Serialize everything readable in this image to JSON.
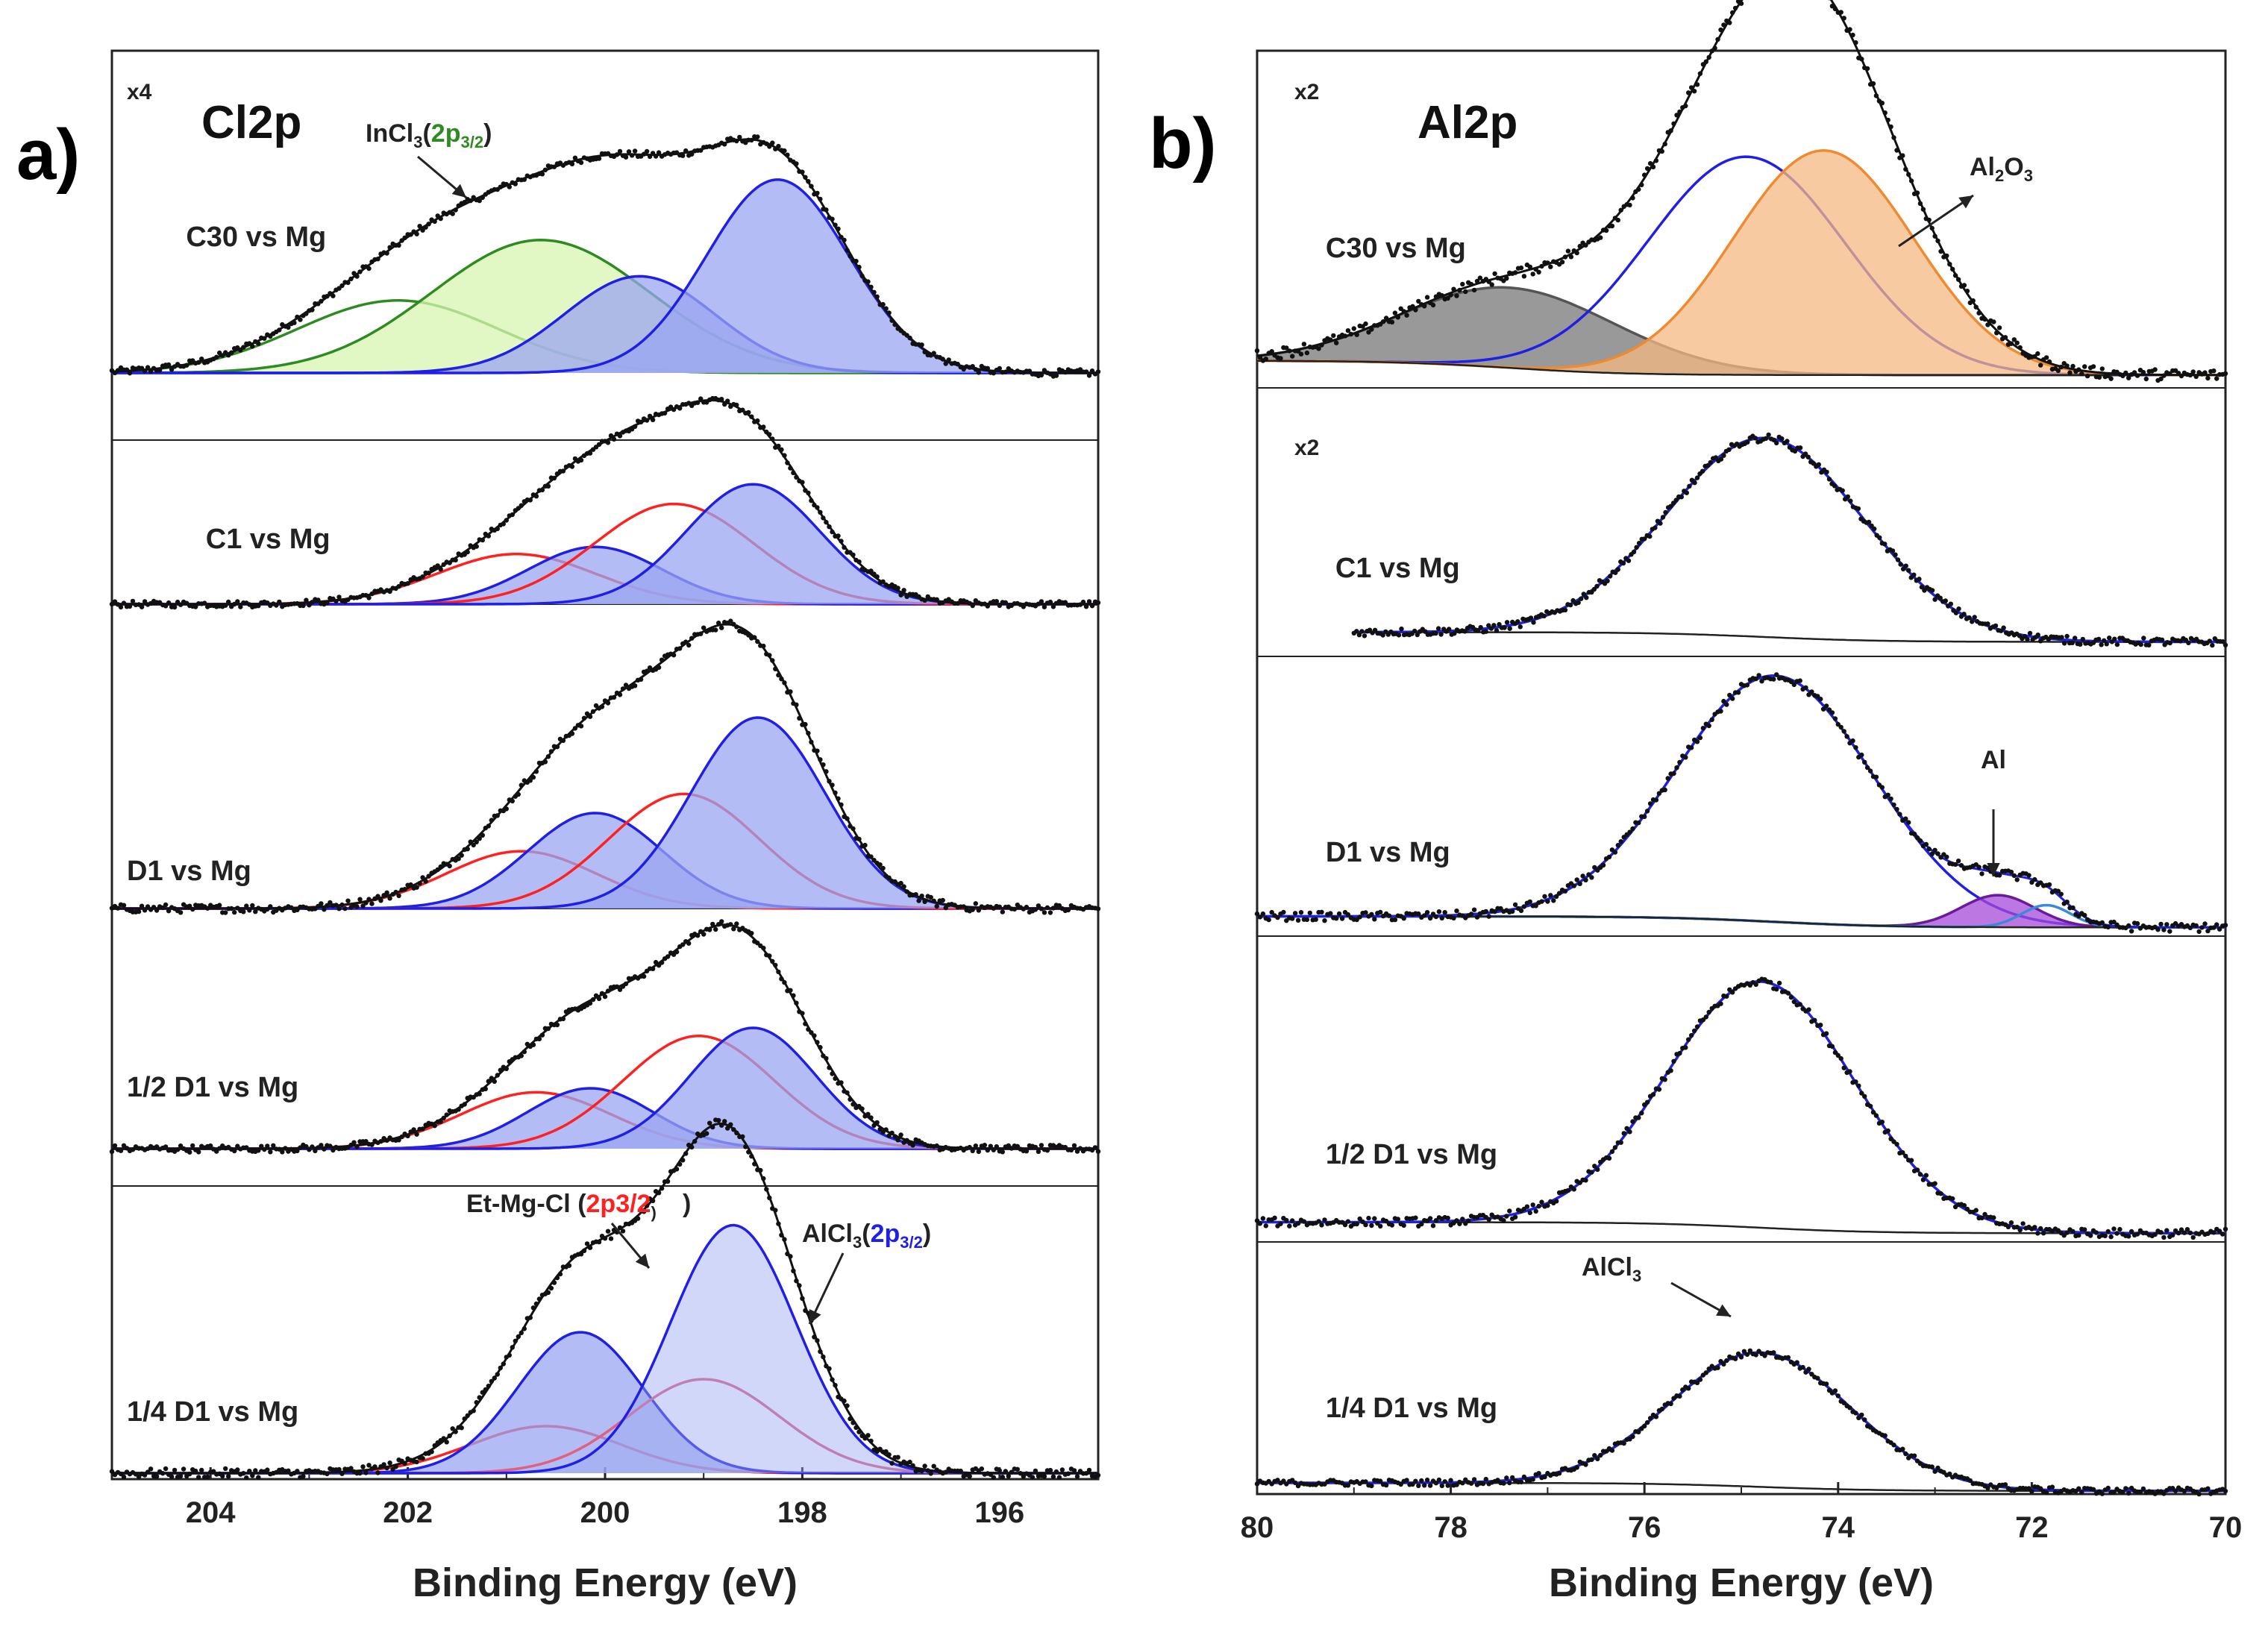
{
  "colors": {
    "data": "#111111",
    "alcl3": "#1f1fe6",
    "alcl3_fill": "#9aa6f0",
    "etmgcl": "#ff2020",
    "incl3": "#2e8b22",
    "incl3_fill": "#d8f5b0",
    "al2o3_fill": "#f5b882",
    "al2o3_line": "#f08a30",
    "dark_fill": "#777777",
    "al_metal_fill": "#a64ad8",
    "al_metal_line": "#6a1a9a",
    "al_doublet": "#3a8ad8"
  },
  "chart_data": [
    {
      "panel": "a)",
      "type": "line",
      "title": "Cl2p",
      "xlabel": "Binding Energy (eV)",
      "xlim": [
        205,
        195
      ],
      "xticks": [
        204,
        202,
        200,
        198,
        196
      ],
      "scale_factor": "x4",
      "series_annotations": {
        "incl3": [
          "InCl",
          "3",
          "(",
          "2p",
          "3/2",
          ")"
        ],
        "etmgcl": [
          "Et-Mg-Cl ",
          "(",
          "2p",
          "3/2",
          ")"
        ],
        "alcl3": [
          "AlCl",
          "3",
          "(",
          "2p",
          "3/2",
          ")"
        ]
      },
      "spectra": [
        {
          "label": "C30 vs Mg",
          "baseline_intensity": 0,
          "components": [
            {
              "species": "InCl3 2p1/2",
              "center": 202.1,
              "fwhm": 2.4,
              "height": 0.36,
              "filled": false
            },
            {
              "species": "InCl3 2p3/2",
              "center": 200.65,
              "fwhm": 2.6,
              "height": 0.66,
              "filled": true
            },
            {
              "species": "AlCl3 2p1/2",
              "center": 199.65,
              "fwhm": 1.8,
              "height": 0.48,
              "filled": true
            },
            {
              "species": "AlCl3 2p3/2",
              "center": 198.25,
              "fwhm": 1.7,
              "height": 0.96,
              "filled": true
            }
          ]
        },
        {
          "label": "C1 vs Mg",
          "baseline_intensity": 0,
          "components": [
            {
              "species": "Et-Mg-Cl 2p1/2",
              "center": 200.9,
              "fwhm": 1.9,
              "height": 0.28,
              "filled": false
            },
            {
              "species": "AlCl3 2p1/2",
              "center": 200.1,
              "fwhm": 1.6,
              "height": 0.32,
              "filled": true
            },
            {
              "species": "Et-Mg-Cl 2p3/2",
              "center": 199.3,
              "fwhm": 1.9,
              "height": 0.56,
              "filled": false
            },
            {
              "species": "AlCl3 2p3/2",
              "center": 198.5,
              "fwhm": 1.6,
              "height": 0.67,
              "filled": true
            }
          ]
        },
        {
          "label": "D1 vs Mg",
          "baseline_intensity": 0,
          "components": [
            {
              "species": "Et-Mg-Cl 2p1/2",
              "center": 200.85,
              "fwhm": 1.8,
              "height": 0.24,
              "filled": false
            },
            {
              "species": "AlCl3 2p1/2",
              "center": 200.1,
              "fwhm": 1.6,
              "height": 0.4,
              "filled": true
            },
            {
              "species": "Et-Mg-Cl 2p3/2",
              "center": 199.2,
              "fwhm": 1.8,
              "height": 0.48,
              "filled": false
            },
            {
              "species": "AlCl3 2p3/2",
              "center": 198.45,
              "fwhm": 1.6,
              "height": 0.8,
              "filled": true
            }
          ]
        },
        {
          "label": "1/2 D1 vs Mg",
          "baseline_intensity": 0,
          "components": [
            {
              "species": "Et-Mg-Cl 2p1/2",
              "center": 200.7,
              "fwhm": 1.8,
              "height": 0.28,
              "filled": false
            },
            {
              "species": "AlCl3 2p1/2",
              "center": 200.15,
              "fwhm": 1.5,
              "height": 0.3,
              "filled": true
            },
            {
              "species": "Et-Mg-Cl 2p3/2",
              "center": 199.05,
              "fwhm": 1.8,
              "height": 0.56,
              "filled": false
            },
            {
              "species": "AlCl3 2p3/2",
              "center": 198.5,
              "fwhm": 1.5,
              "height": 0.6,
              "filled": true
            }
          ]
        },
        {
          "label": "1/4 D1 vs Mg",
          "baseline_intensity": 0,
          "components": [
            {
              "species": "Et-Mg-Cl 2p1/2",
              "center": 200.6,
              "fwhm": 1.8,
              "height": 0.18,
              "filled": false
            },
            {
              "species": "AlCl3 2p1/2",
              "center": 200.25,
              "fwhm": 1.5,
              "height": 0.54,
              "filled": true
            },
            {
              "species": "Et-Mg-Cl 2p3/2",
              "center": 199.0,
              "fwhm": 1.8,
              "height": 0.36,
              "filled": false
            },
            {
              "species": "AlCl3 2p3/2",
              "center": 198.7,
              "fwhm": 1.5,
              "height": 0.95,
              "filled": true
            }
          ]
        }
      ]
    },
    {
      "panel": "b)",
      "type": "line",
      "title": "Al2p",
      "xlabel": "Binding Energy (eV)",
      "xlim": [
        80,
        70
      ],
      "xticks": [
        80,
        78,
        76,
        74,
        72,
        70
      ],
      "series_annotations": {
        "al2o3": [
          "Al",
          "2",
          "O",
          "3"
        ],
        "al": "Al",
        "alcl3": [
          "AlCl",
          "3"
        ]
      },
      "spectra": [
        {
          "label": "C30 vs Mg",
          "scale_factor": "x2",
          "components": [
            {
              "species": "gray component",
              "center": 77.4,
              "fwhm": 2.6,
              "height": 0.25,
              "filled": true
            },
            {
              "species": "AlCl3",
              "center": 74.95,
              "fwhm": 2.4,
              "height": 0.68,
              "filled": false
            },
            {
              "species": "Al2O3",
              "center": 74.15,
              "fwhm": 2.2,
              "height": 0.7,
              "filled": true
            }
          ]
        },
        {
          "label": "C1 vs Mg",
          "scale_factor": "x2",
          "components": [
            {
              "species": "AlCl3",
              "center": 74.75,
              "fwhm": 2.4,
              "height": 0.92,
              "filled": false
            }
          ]
        },
        {
          "label": "D1 vs Mg",
          "components": [
            {
              "species": "AlCl3",
              "center": 74.65,
              "fwhm": 2.4,
              "height": 1.0,
              "filled": false
            },
            {
              "species": "Al metal 2p3/2",
              "center": 72.35,
              "fwhm": 0.9,
              "height": 0.13,
              "filled": true
            },
            {
              "species": "Al metal 2p1/2",
              "center": 71.85,
              "fwhm": 0.6,
              "height": 0.09,
              "filled": false
            }
          ]
        },
        {
          "label": "1/2 D1 vs Mg",
          "components": [
            {
              "species": "AlCl3",
              "center": 74.8,
              "fwhm": 2.3,
              "height": 1.0,
              "filled": false
            }
          ]
        },
        {
          "label": "1/4 D1 vs Mg",
          "components": [
            {
              "species": "AlCl3",
              "center": 74.8,
              "fwhm": 2.2,
              "height": 0.75,
              "filled": false
            }
          ]
        }
      ]
    }
  ]
}
